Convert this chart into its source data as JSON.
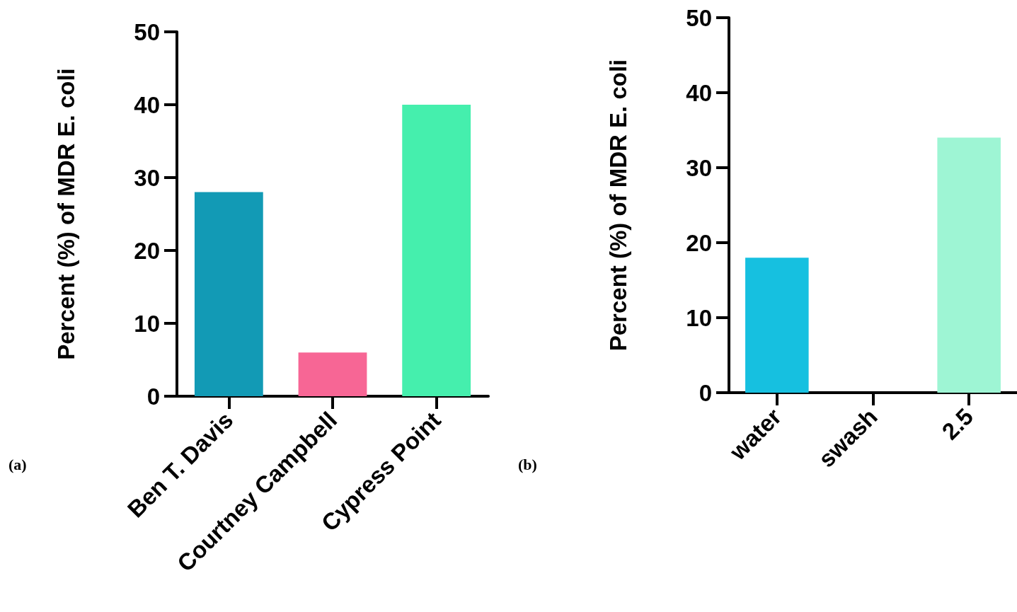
{
  "chart_data": [
    {
      "type": "bar",
      "ylabel": "Percent (%) of MDR E. coli",
      "categories": [
        "Ben T. Davis",
        "Courtney Campbell",
        "Cypress Point"
      ],
      "values": [
        28,
        6,
        40
      ],
      "colors": [
        "#129ab5",
        "#f76695",
        "#45efad"
      ],
      "ylim": [
        0,
        50
      ],
      "yticks": [
        0,
        10,
        20,
        30,
        40,
        50
      ],
      "grid": false,
      "annotations": [
        "(a)"
      ]
    },
    {
      "type": "bar",
      "ylabel": "Percent (%) of MDR E. coli",
      "categories": [
        "water",
        "swash",
        "2.5"
      ],
      "values": [
        18,
        0,
        34
      ],
      "colors": [
        "#16c0e0",
        null,
        "#9ef5d4"
      ],
      "ylim": [
        0,
        50
      ],
      "yticks": [
        0,
        10,
        20,
        30,
        40,
        50
      ],
      "grid": false,
      "annotations": [
        "(b)"
      ]
    }
  ]
}
